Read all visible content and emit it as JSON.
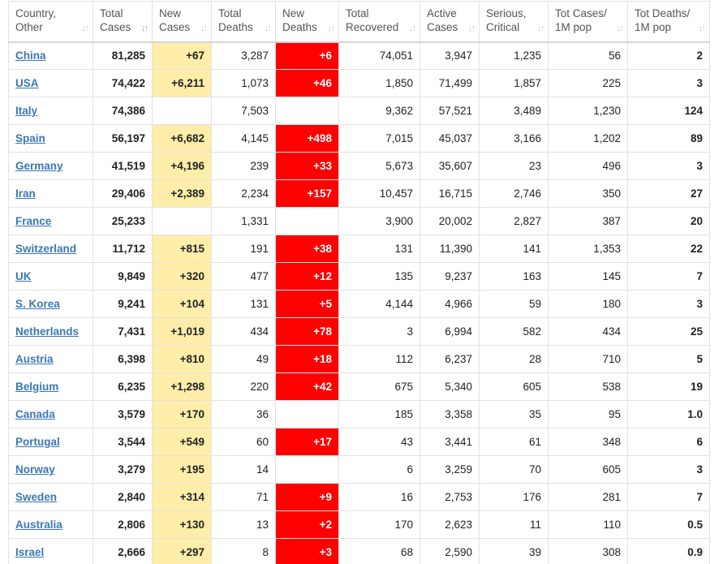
{
  "accent": {
    "new_cases_bg": "#ffeeaa",
    "new_deaths_bg": "#ff0000",
    "link": "#3a77b5"
  },
  "icons": {
    "sort": "sort-arrows-icon"
  },
  "headers": [
    {
      "l1": "Country,",
      "l2": "Other"
    },
    {
      "l1": "Total",
      "l2": "Cases"
    },
    {
      "l1": "New",
      "l2": "Cases"
    },
    {
      "l1": "Total",
      "l2": "Deaths"
    },
    {
      "l1": "New",
      "l2": "Deaths"
    },
    {
      "l1": "Total",
      "l2": "Recovered"
    },
    {
      "l1": "Active",
      "l2": "Cases"
    },
    {
      "l1": "Serious,",
      "l2": "Critical"
    },
    {
      "l1": "Tot Cases/",
      "l2": "1M pop"
    },
    {
      "l1": "Tot Deaths/",
      "l2": "1M pop"
    }
  ],
  "sorted_column": "Total Cases",
  "rows": [
    {
      "country": "China",
      "total_cases": "81,285",
      "new_cases": "+67",
      "total_deaths": "3,287",
      "new_deaths": "+6",
      "total_recovered": "74,051",
      "active_cases": "3,947",
      "serious_critical": "1,235",
      "tot_cases_1m": "56",
      "tot_deaths_1m": "2"
    },
    {
      "country": "USA",
      "total_cases": "74,422",
      "new_cases": "+6,211",
      "total_deaths": "1,073",
      "new_deaths": "+46",
      "total_recovered": "1,850",
      "active_cases": "71,499",
      "serious_critical": "1,857",
      "tot_cases_1m": "225",
      "tot_deaths_1m": "3"
    },
    {
      "country": "Italy",
      "total_cases": "74,386",
      "new_cases": "",
      "total_deaths": "7,503",
      "new_deaths": "",
      "total_recovered": "9,362",
      "active_cases": "57,521",
      "serious_critical": "3,489",
      "tot_cases_1m": "1,230",
      "tot_deaths_1m": "124"
    },
    {
      "country": "Spain",
      "total_cases": "56,197",
      "new_cases": "+6,682",
      "total_deaths": "4,145",
      "new_deaths": "+498",
      "total_recovered": "7,015",
      "active_cases": "45,037",
      "serious_critical": "3,166",
      "tot_cases_1m": "1,202",
      "tot_deaths_1m": "89"
    },
    {
      "country": "Germany",
      "total_cases": "41,519",
      "new_cases": "+4,196",
      "total_deaths": "239",
      "new_deaths": "+33",
      "total_recovered": "5,673",
      "active_cases": "35,607",
      "serious_critical": "23",
      "tot_cases_1m": "496",
      "tot_deaths_1m": "3"
    },
    {
      "country": "Iran",
      "total_cases": "29,406",
      "new_cases": "+2,389",
      "total_deaths": "2,234",
      "new_deaths": "+157",
      "total_recovered": "10,457",
      "active_cases": "16,715",
      "serious_critical": "2,746",
      "tot_cases_1m": "350",
      "tot_deaths_1m": "27"
    },
    {
      "country": "France",
      "total_cases": "25,233",
      "new_cases": "",
      "total_deaths": "1,331",
      "new_deaths": "",
      "total_recovered": "3,900",
      "active_cases": "20,002",
      "serious_critical": "2,827",
      "tot_cases_1m": "387",
      "tot_deaths_1m": "20"
    },
    {
      "country": "Switzerland",
      "total_cases": "11,712",
      "new_cases": "+815",
      "total_deaths": "191",
      "new_deaths": "+38",
      "total_recovered": "131",
      "active_cases": "11,390",
      "serious_critical": "141",
      "tot_cases_1m": "1,353",
      "tot_deaths_1m": "22"
    },
    {
      "country": "UK",
      "total_cases": "9,849",
      "new_cases": "+320",
      "total_deaths": "477",
      "new_deaths": "+12",
      "total_recovered": "135",
      "active_cases": "9,237",
      "serious_critical": "163",
      "tot_cases_1m": "145",
      "tot_deaths_1m": "7"
    },
    {
      "country": "S. Korea",
      "total_cases": "9,241",
      "new_cases": "+104",
      "total_deaths": "131",
      "new_deaths": "+5",
      "total_recovered": "4,144",
      "active_cases": "4,966",
      "serious_critical": "59",
      "tot_cases_1m": "180",
      "tot_deaths_1m": "3"
    },
    {
      "country": "Netherlands",
      "total_cases": "7,431",
      "new_cases": "+1,019",
      "total_deaths": "434",
      "new_deaths": "+78",
      "total_recovered": "3",
      "active_cases": "6,994",
      "serious_critical": "582",
      "tot_cases_1m": "434",
      "tot_deaths_1m": "25"
    },
    {
      "country": "Austria",
      "total_cases": "6,398",
      "new_cases": "+810",
      "total_deaths": "49",
      "new_deaths": "+18",
      "total_recovered": "112",
      "active_cases": "6,237",
      "serious_critical": "28",
      "tot_cases_1m": "710",
      "tot_deaths_1m": "5"
    },
    {
      "country": "Belgium",
      "total_cases": "6,235",
      "new_cases": "+1,298",
      "total_deaths": "220",
      "new_deaths": "+42",
      "total_recovered": "675",
      "active_cases": "5,340",
      "serious_critical": "605",
      "tot_cases_1m": "538",
      "tot_deaths_1m": "19"
    },
    {
      "country": "Canada",
      "total_cases": "3,579",
      "new_cases": "+170",
      "total_deaths": "36",
      "new_deaths": "",
      "total_recovered": "185",
      "active_cases": "3,358",
      "serious_critical": "35",
      "tot_cases_1m": "95",
      "tot_deaths_1m": "1.0"
    },
    {
      "country": "Portugal",
      "total_cases": "3,544",
      "new_cases": "+549",
      "total_deaths": "60",
      "new_deaths": "+17",
      "total_recovered": "43",
      "active_cases": "3,441",
      "serious_critical": "61",
      "tot_cases_1m": "348",
      "tot_deaths_1m": "6"
    },
    {
      "country": "Norway",
      "total_cases": "3,279",
      "new_cases": "+195",
      "total_deaths": "14",
      "new_deaths": "",
      "total_recovered": "6",
      "active_cases": "3,259",
      "serious_critical": "70",
      "tot_cases_1m": "605",
      "tot_deaths_1m": "3"
    },
    {
      "country": "Sweden",
      "total_cases": "2,840",
      "new_cases": "+314",
      "total_deaths": "71",
      "new_deaths": "+9",
      "total_recovered": "16",
      "active_cases": "2,753",
      "serious_critical": "176",
      "tot_cases_1m": "281",
      "tot_deaths_1m": "7"
    },
    {
      "country": "Australia",
      "total_cases": "2,806",
      "new_cases": "+130",
      "total_deaths": "13",
      "new_deaths": "+2",
      "total_recovered": "170",
      "active_cases": "2,623",
      "serious_critical": "11",
      "tot_cases_1m": "110",
      "tot_deaths_1m": "0.5"
    },
    {
      "country": "Israel",
      "total_cases": "2,666",
      "new_cases": "+297",
      "total_deaths": "8",
      "new_deaths": "+3",
      "total_recovered": "68",
      "active_cases": "2,590",
      "serious_critical": "39",
      "tot_cases_1m": "308",
      "tot_deaths_1m": "0.9"
    }
  ]
}
